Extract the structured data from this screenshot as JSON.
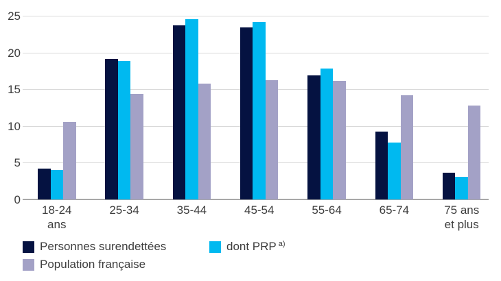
{
  "chart_data": {
    "type": "bar",
    "title": "",
    "xlabel": "",
    "ylabel": "",
    "categories": [
      {
        "lines": [
          "18-24",
          "ans"
        ]
      },
      {
        "lines": [
          "25-34"
        ]
      },
      {
        "lines": [
          "35-44"
        ]
      },
      {
        "lines": [
          "45-54"
        ]
      },
      {
        "lines": [
          "55-64"
        ]
      },
      {
        "lines": [
          "65-74"
        ]
      },
      {
        "lines": [
          "75 ans",
          "et plus"
        ]
      }
    ],
    "series": [
      {
        "name": "Personnes surendettées",
        "color": "#051241",
        "values": [
          4.2,
          19.1,
          23.7,
          23.4,
          16.9,
          9.2,
          3.6
        ]
      },
      {
        "name": "dont PRP",
        "suffix": "a)",
        "color": "#00b9f0",
        "values": [
          4.0,
          18.8,
          24.5,
          24.2,
          17.8,
          7.7,
          3.1
        ]
      },
      {
        "name": "Population française",
        "color": "#a3a1c6",
        "values": [
          10.5,
          14.4,
          15.8,
          16.2,
          16.1,
          14.2,
          12.8
        ]
      }
    ],
    "y_ticks": [
      0,
      5,
      10,
      15,
      20,
      25
    ],
    "ylim": [
      0,
      25
    ],
    "grid": "horizontal-only",
    "legend_position": "bottom",
    "colors": {
      "gridline": "#d9d9d9",
      "axis": "#a8a8a8",
      "text": "#3d3d3d",
      "background": "#ffffff"
    }
  }
}
